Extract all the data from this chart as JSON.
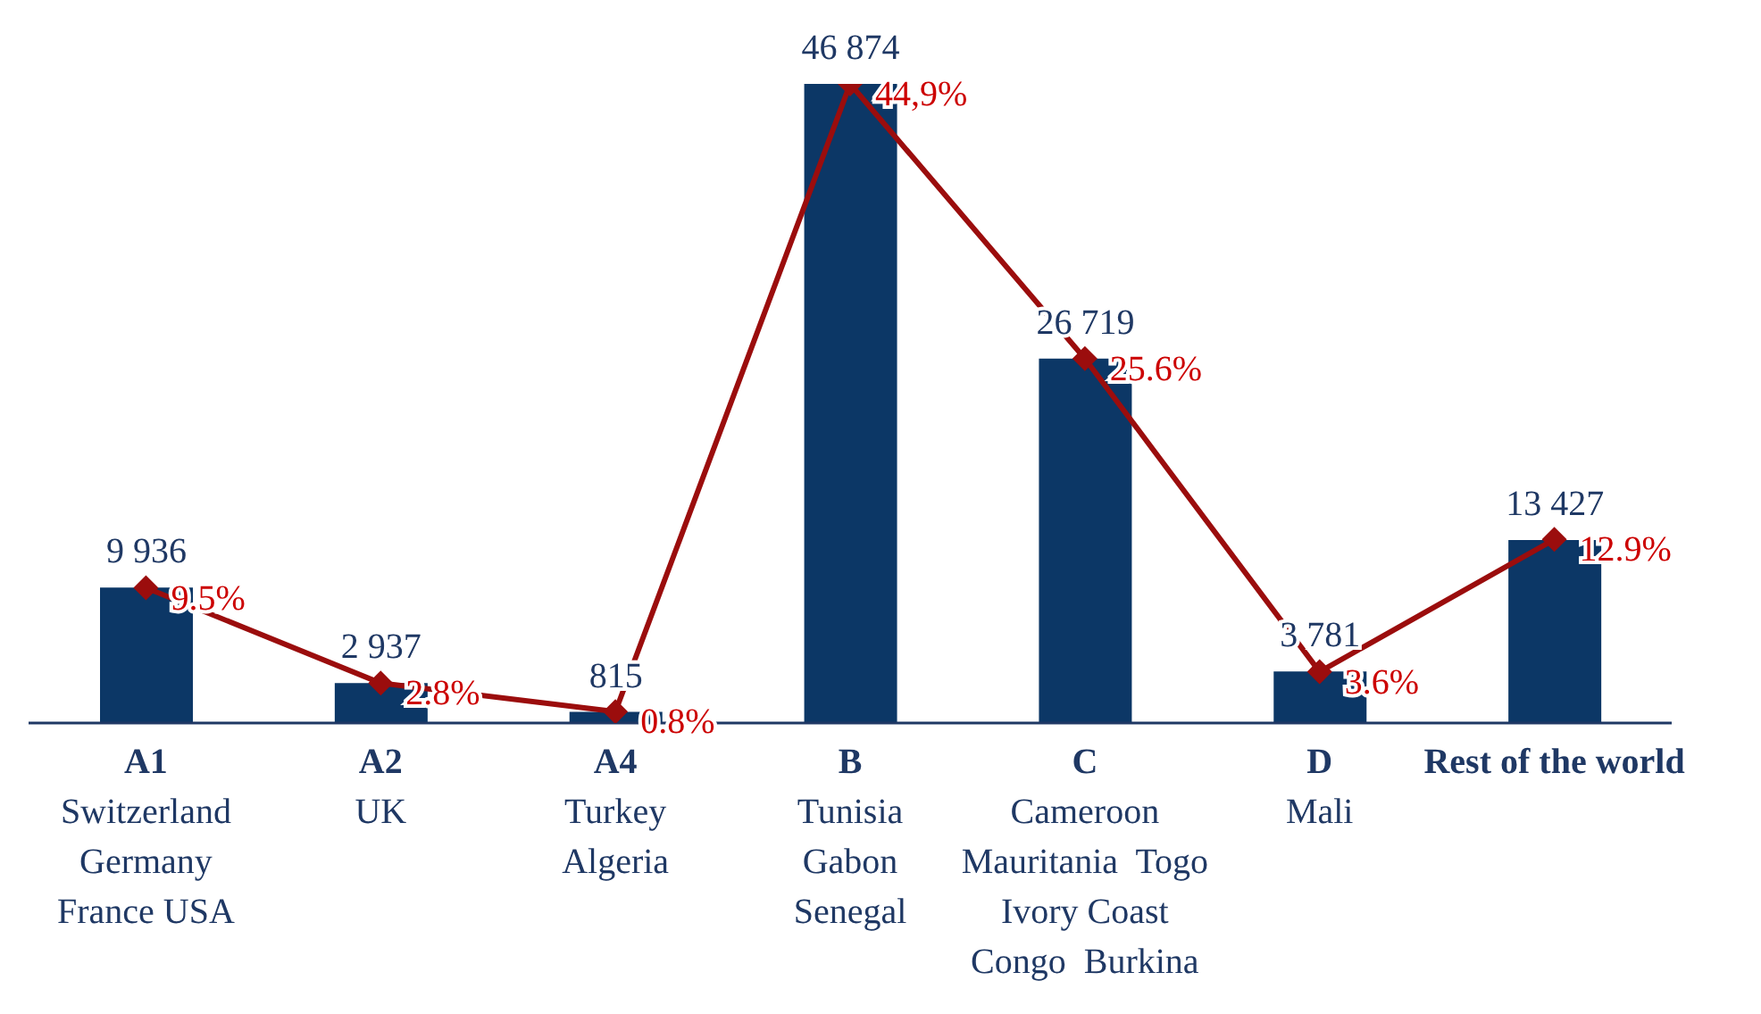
{
  "chart_data": {
    "type": "bar",
    "categories": [
      "A1\nSwitzerland\nGermany\nFrance USA",
      "A2\nUK",
      "A4\nTurkey\nAlgeria",
      "B\nTunisia\nGabon\nSenegal",
      "C\nCameroon\nMauritania  Togo\nIvory Coast\nCongo  Burkina",
      "D\nMali",
      "Rest of the world"
    ],
    "series": [
      {
        "color": "#0c3766",
        "values": [
          9936,
          2937,
          815,
          46874,
          26719,
          3781,
          13427
        ],
        "value_labels": [
          "9 936",
          "2 937",
          "815",
          "46 874",
          "26 719",
          "3 781",
          "13 427"
        ]
      },
      {
        "type": "line",
        "axis": "y2",
        "color": "#9b0d0d",
        "values": [
          9.5,
          2.8,
          0.8,
          44.9,
          25.6,
          3.6,
          12.9
        ],
        "value_labels": [
          "9.5%",
          "2.8%",
          "0.8%",
          "44,9%",
          "25.6%",
          "3.6%",
          "12.9%"
        ]
      }
    ],
    "tick_labels": "x",
    "marker": "diamond",
    "grid": false,
    "legend": false
  }
}
